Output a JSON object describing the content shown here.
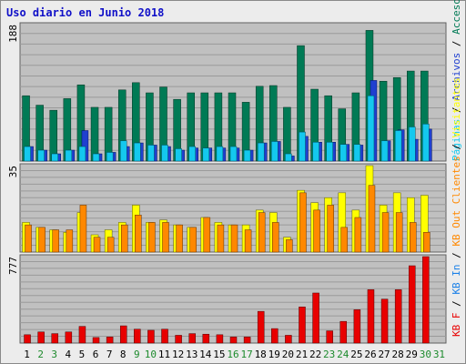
{
  "title": "Uso diario en Junio 2018",
  "colors": {
    "visits": "#007a55",
    "pages": "#2040d0",
    "hits": "#14c8ee",
    "clients": "#ffff00",
    "bytes_out": "#ff8800",
    "bytes_in": "#1a80e8",
    "bytes_f": "#e80000",
    "weekend": "#1c8a2c",
    "weekday": "#000000"
  },
  "chart_data": [
    {
      "type": "bar",
      "panel": "top",
      "ymax_label": "188",
      "ylim": [
        0,
        188
      ],
      "categories": [
        "1",
        "2",
        "3",
        "4",
        "5",
        "6",
        "7",
        "8",
        "9",
        "10",
        "11",
        "12",
        "13",
        "14",
        "15",
        "16",
        "17",
        "18",
        "19",
        "20",
        "21",
        "22",
        "23",
        "24",
        "25",
        "26",
        "27",
        "28",
        "29",
        "30",
        "31"
      ],
      "series": [
        {
          "name": "Visitas",
          "values": [
            90,
            77,
            70,
            86,
            105,
            74,
            74,
            98,
            108,
            94,
            102,
            85,
            94,
            94,
            94,
            94,
            81,
            103,
            104,
            74,
            159,
            99,
            90,
            72,
            94,
            180,
            110,
            115,
            124,
            124,
            0
          ]
        },
        {
          "name": "Páginas",
          "values": [
            20,
            15,
            10,
            15,
            20,
            10,
            12,
            28,
            25,
            22,
            22,
            17,
            20,
            18,
            20,
            20,
            15,
            25,
            27,
            10,
            40,
            26,
            26,
            23,
            23,
            90,
            28,
            42,
            47,
            51,
            0
          ]
        },
        {
          "name": "Archivos",
          "values": [
            20,
            15,
            10,
            15,
            42,
            10,
            12,
            20,
            25,
            22,
            20,
            15,
            18,
            18,
            18,
            18,
            15,
            25,
            27,
            7,
            34,
            26,
            26,
            23,
            22,
            111,
            28,
            43,
            30,
            44,
            0
          ]
        }
      ]
    },
    {
      "type": "bar",
      "panel": "middle",
      "ymax_label": "35",
      "ylim": [
        0,
        35
      ],
      "categories": [
        "1",
        "2",
        "3",
        "4",
        "5",
        "6",
        "7",
        "8",
        "9",
        "10",
        "11",
        "12",
        "13",
        "14",
        "15",
        "16",
        "17",
        "18",
        "19",
        "20",
        "21",
        "22",
        "23",
        "24",
        "25",
        "26",
        "27",
        "28",
        "29",
        "30",
        "31"
      ],
      "series": [
        {
          "name": "Visitantes",
          "values": [
            12,
            10,
            9,
            8,
            16,
            7,
            9,
            12,
            19,
            12,
            13,
            11,
            10,
            14,
            12,
            11,
            11,
            17,
            16,
            6,
            25,
            20,
            22,
            24,
            17,
            35,
            19,
            24,
            22,
            23,
            0
          ]
        },
        {
          "name": "KB Out",
          "values": [
            11,
            10,
            9,
            9,
            19,
            6,
            6,
            11,
            15,
            12,
            12,
            11,
            10,
            14,
            11,
            11,
            9,
            16,
            12,
            5,
            24,
            17,
            19,
            10,
            14,
            27,
            16,
            16,
            12,
            8,
            0
          ]
        }
      ]
    },
    {
      "type": "bar",
      "panel": "bottom",
      "ymax_label": "777",
      "ylim": [
        0,
        777
      ],
      "categories": [
        "1",
        "2",
        "3",
        "4",
        "5",
        "6",
        "7",
        "8",
        "9",
        "10",
        "11",
        "12",
        "13",
        "14",
        "15",
        "16",
        "17",
        "18",
        "19",
        "20",
        "21",
        "22",
        "23",
        "24",
        "25",
        "26",
        "27",
        "28",
        "29",
        "30",
        "31"
      ],
      "series": [
        {
          "name": "KB F",
          "values": [
            75,
            100,
            85,
            100,
            150,
            50,
            55,
            155,
            125,
            115,
            125,
            70,
            85,
            80,
            75,
            55,
            55,
            285,
            130,
            70,
            325,
            450,
            110,
            195,
            300,
            480,
            395,
            480,
            695,
            777,
            0
          ]
        }
      ]
    }
  ],
  "right_labels": {
    "top": {
      "accesos": "Accesos",
      "sep1": " / ",
      "archivos": "Archivos",
      "sep2": " / ",
      "paginas": "Páginas"
    },
    "middle": {
      "visitantes": "Visitantes",
      "sep": " / ",
      "out": "KB Out Clientes"
    },
    "bottom": {
      "in": "KB In",
      "sep": " / ",
      "f": "KB F"
    }
  },
  "weekends": [
    2,
    3,
    9,
    10,
    16,
    17,
    23,
    24,
    30,
    31
  ]
}
